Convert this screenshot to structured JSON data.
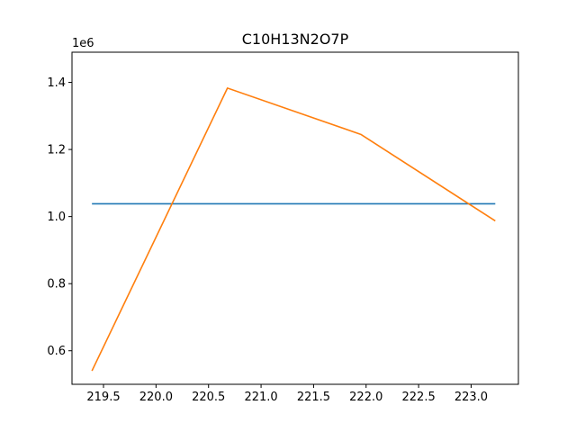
{
  "chart_data": {
    "type": "line",
    "title": "C10H13N2O7P",
    "xlabel": "",
    "ylabel": "",
    "y_offset_label": "1e6",
    "xlim": [
      219.2,
      223.45
    ],
    "ylim": [
      500000,
      1490000
    ],
    "xticks": [
      219.5,
      220.0,
      220.5,
      221.0,
      221.5,
      222.0,
      222.5,
      223.0
    ],
    "xtick_labels": [
      "219.5",
      "220.0",
      "220.5",
      "221.0",
      "221.5",
      "222.0",
      "222.5",
      "223.0"
    ],
    "yticks": [
      600000,
      800000,
      1000000,
      1200000,
      1400000
    ],
    "ytick_labels": [
      "0.6",
      "0.8",
      "1.0",
      "1.2",
      "1.4"
    ],
    "grid": false,
    "series": [
      {
        "color": "#1f77b4",
        "x": [
          219.39,
          223.23
        ],
        "y": [
          1038000,
          1038000
        ]
      },
      {
        "color": "#ff7f0e",
        "x": [
          219.39,
          220.68,
          221.95,
          223.23
        ],
        "y": [
          540000,
          1383000,
          1245000,
          987000
        ]
      }
    ]
  }
}
